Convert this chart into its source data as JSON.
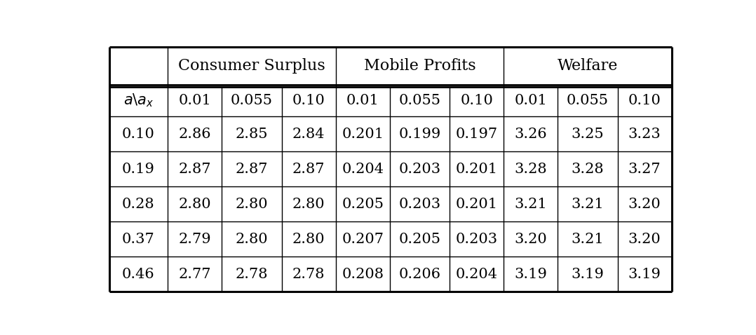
{
  "header_groups": [
    {
      "label": "Consumer Surplus",
      "col_span": 3
    },
    {
      "label": "Mobile Profits",
      "col_span": 3
    },
    {
      "label": "Welfare",
      "col_span": 3
    }
  ],
  "subheader": [
    "a\\backslash a_x",
    "0.01",
    "0.055",
    "0.10",
    "0.01",
    "0.055",
    "0.10",
    "0.01",
    "0.055",
    "0.10"
  ],
  "data_rows": [
    [
      "0.10",
      "2.86",
      "2.85",
      "2.84",
      "0.201",
      "0.199",
      "0.197",
      "3.26",
      "3.25",
      "3.23"
    ],
    [
      "0.19",
      "2.87",
      "2.87",
      "2.87",
      "0.204",
      "0.203",
      "0.201",
      "3.28",
      "3.28",
      "3.27"
    ],
    [
      "0.28",
      "2.80",
      "2.80",
      "2.80",
      "0.205",
      "0.203",
      "0.201",
      "3.21",
      "3.21",
      "3.20"
    ],
    [
      "0.37",
      "2.79",
      "2.80",
      "2.80",
      "0.207",
      "0.205",
      "0.203",
      "3.20",
      "3.21",
      "3.20"
    ],
    [
      "0.46",
      "2.77",
      "2.78",
      "2.78",
      "0.208",
      "0.206",
      "0.204",
      "3.19",
      "3.19",
      "3.19"
    ]
  ],
  "background_color": "#ffffff",
  "text_color": "#000000",
  "font_size": 15,
  "header_font_size": 16,
  "fig_width": 10.78,
  "fig_height": 4.78,
  "dpi": 100
}
